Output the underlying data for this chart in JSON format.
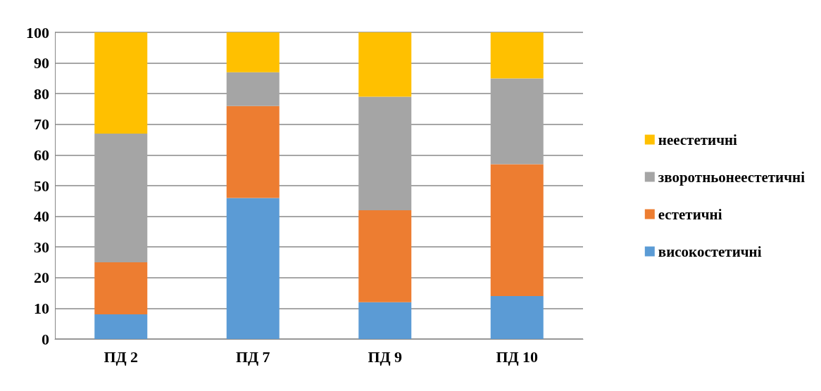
{
  "chart_data": {
    "type": "bar",
    "stacked": true,
    "categories": [
      "ПД 2",
      "ПД 7",
      "ПД 9",
      "ПД 10"
    ],
    "series": [
      {
        "name": "високостетичні",
        "color": "#5b9bd5",
        "values": [
          8,
          46,
          12,
          14
        ]
      },
      {
        "name": "естетичні",
        "color": "#ed7d31",
        "values": [
          17,
          30,
          30,
          43
        ]
      },
      {
        "name": "зворотньонеестетичні",
        "color": "#a5a5a5",
        "values": [
          42,
          11,
          37,
          28
        ]
      },
      {
        "name": "неестетичні",
        "color": "#ffc000",
        "values": [
          33,
          13,
          21,
          15
        ]
      }
    ],
    "ylim": [
      0,
      100
    ],
    "yticks": [
      0,
      10,
      20,
      30,
      40,
      50,
      60,
      70,
      80,
      90,
      100
    ],
    "grid": "y",
    "legend": "right"
  }
}
